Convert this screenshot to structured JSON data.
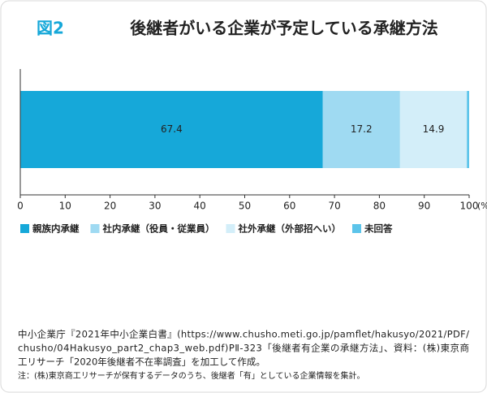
{
  "chart_data": {
    "type": "stacked-barh",
    "figure_label": "図2",
    "title": "後継者がいる企業が予定している承継方法",
    "series": [
      {
        "name": "親族内承継",
        "color": "#16a8d9",
        "values": [
          67.4
        ]
      },
      {
        "name": "社内承継（役員・従業員）",
        "color": "#9fdaf2",
        "values": [
          17.2
        ]
      },
      {
        "name": "社外承継（外部招へい）",
        "color": "#d3eef9",
        "values": [
          14.9
        ]
      },
      {
        "name": "未回答",
        "color": "#5cc4ea",
        "values": [
          0.5
        ]
      }
    ],
    "xlim": [
      0,
      100
    ],
    "xticks": [
      0,
      10,
      20,
      30,
      40,
      50,
      60,
      70,
      80,
      90,
      100
    ],
    "x_unit": "(%)",
    "source": [
      "中小企業庁『2021年中小企業白書』(https://www.chusho.meti.go.jp/pamflet/hakusyo/2021/PDF/",
      "chusho/04Hakusyo_part2_chap3_web.pdf)PⅡ-323「後継者有企業の承継方法」、資料：(株)東京商",
      "工リサーチ「2020年後継者不在率調査」を加工して作成。"
    ],
    "note": "注：(株)東京商工リサーチが保有するデータのうち、後継者「有」としている企業情報を集計。"
  }
}
